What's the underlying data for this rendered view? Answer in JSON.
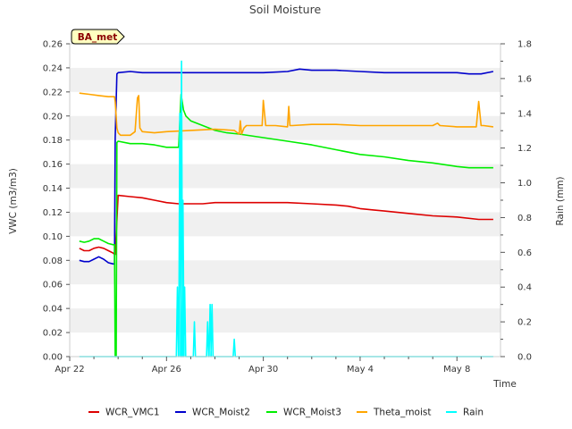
{
  "chart_data": {
    "type": "line",
    "title": "Soil Moisture",
    "xlabel": "Time",
    "ylabel": "VWC (m3/m3)",
    "y2label": "Rain (mm)",
    "badge": "BA_met",
    "ylim": [
      0,
      0.26
    ],
    "y2lim": [
      0,
      1.8
    ],
    "xlim": [
      0,
      17.8
    ],
    "grid": "horizontal bands",
    "legend_position": "bottom",
    "y_ticks": [
      "0.00",
      "0.02",
      "0.04",
      "0.06",
      "0.08",
      "0.10",
      "0.12",
      "0.14",
      "0.16",
      "0.18",
      "0.20",
      "0.22",
      "0.24",
      "0.26"
    ],
    "y2_ticks": [
      "0.0",
      "0.2",
      "0.4",
      "0.6",
      "0.8",
      "1.0",
      "1.2",
      "1.4",
      "1.6",
      "1.8"
    ],
    "x_ticks": [
      {
        "day": 0,
        "label": "Apr 22"
      },
      {
        "day": 4,
        "label": "Apr 26"
      },
      {
        "day": 8,
        "label": "Apr 30"
      },
      {
        "day": 12,
        "label": "May 4"
      },
      {
        "day": 16,
        "label": "May 8"
      }
    ],
    "series": [
      {
        "name": "WCR_VMC1",
        "color": "#dd0000",
        "axis": "left",
        "x": [
          0.4,
          0.6,
          0.8,
          1.0,
          1.2,
          1.4,
          1.6,
          1.8,
          1.85,
          1.88,
          2.0,
          2.5,
          3.0,
          3.5,
          4.0,
          4.5,
          5.0,
          5.5,
          6.0,
          7.0,
          8.0,
          9.0,
          10.0,
          11.0,
          11.5,
          12.0,
          12.5,
          13.0,
          14.0,
          15.0,
          16.0,
          16.9,
          17.5
        ],
        "y": [
          0.09,
          0.088,
          0.088,
          0.09,
          0.091,
          0.09,
          0.088,
          0.086,
          0.085,
          0.085,
          0.134,
          0.133,
          0.132,
          0.13,
          0.128,
          0.127,
          0.127,
          0.127,
          0.128,
          0.128,
          0.128,
          0.128,
          0.127,
          0.126,
          0.125,
          0.123,
          0.122,
          0.121,
          0.119,
          0.117,
          0.116,
          0.114,
          0.114
        ]
      },
      {
        "name": "WCR_Moist2",
        "color": "#0000cc",
        "axis": "left",
        "x": [
          0.4,
          0.6,
          0.8,
          1.0,
          1.2,
          1.4,
          1.6,
          1.8,
          1.85,
          1.88,
          1.95,
          2.0,
          2.5,
          3.0,
          4.0,
          5.0,
          6.0,
          7.0,
          8.0,
          9.0,
          9.5,
          10.0,
          11.0,
          12.0,
          13.0,
          14.0,
          15.0,
          16.0,
          16.5,
          17.0,
          17.5
        ],
        "y": [
          0.08,
          0.079,
          0.079,
          0.081,
          0.083,
          0.081,
          0.078,
          0.077,
          0.077,
          0.182,
          0.235,
          0.236,
          0.237,
          0.236,
          0.236,
          0.236,
          0.236,
          0.236,
          0.236,
          0.237,
          0.239,
          0.238,
          0.238,
          0.237,
          0.236,
          0.236,
          0.236,
          0.236,
          0.235,
          0.235,
          0.237
        ]
      },
      {
        "name": "WCR_Moist3",
        "color": "#00ee00",
        "axis": "left",
        "x": [
          0.4,
          0.6,
          0.8,
          1.0,
          1.2,
          1.4,
          1.6,
          1.8,
          1.85,
          1.88,
          1.92,
          1.95,
          2.0,
          2.5,
          3.0,
          3.5,
          4.0,
          4.3,
          4.5,
          4.6,
          4.7,
          4.8,
          5.0,
          5.5,
          6.0,
          6.5,
          7.0,
          8.0,
          9.0,
          10.0,
          11.0,
          12.0,
          13.0,
          14.0,
          15.0,
          16.0,
          16.5,
          17.0,
          17.5
        ],
        "y": [
          0.096,
          0.095,
          0.096,
          0.098,
          0.098,
          0.096,
          0.094,
          0.093,
          0.093,
          0.0,
          0.0,
          0.178,
          0.179,
          0.177,
          0.177,
          0.176,
          0.174,
          0.174,
          0.174,
          0.218,
          0.205,
          0.2,
          0.196,
          0.192,
          0.188,
          0.186,
          0.185,
          0.182,
          0.179,
          0.176,
          0.172,
          0.168,
          0.166,
          0.163,
          0.161,
          0.158,
          0.157,
          0.157,
          0.157
        ]
      },
      {
        "name": "Theta_moist",
        "color": "#ffa500",
        "axis": "left",
        "x": [
          0.4,
          0.8,
          1.2,
          1.6,
          1.85,
          1.88,
          1.95,
          2.0,
          2.1,
          2.3,
          2.5,
          2.7,
          2.8,
          2.85,
          2.9,
          3.0,
          3.5,
          4.0,
          5.0,
          6.0,
          6.8,
          7.0,
          7.05,
          7.1,
          7.2,
          7.3,
          7.95,
          8.0,
          8.1,
          8.2,
          8.5,
          9.0,
          9.05,
          9.1,
          9.2,
          10.0,
          11.0,
          12.0,
          13.0,
          14.0,
          15.0,
          15.2,
          15.3,
          16.0,
          16.5,
          16.8,
          16.9,
          17.0,
          17.1,
          17.5
        ],
        "y": [
          0.219,
          0.218,
          0.217,
          0.216,
          0.216,
          0.212,
          0.19,
          0.186,
          0.184,
          0.184,
          0.184,
          0.187,
          0.215,
          0.217,
          0.19,
          0.187,
          0.186,
          0.187,
          0.188,
          0.189,
          0.188,
          0.185,
          0.196,
          0.185,
          0.19,
          0.192,
          0.192,
          0.213,
          0.192,
          0.192,
          0.192,
          0.191,
          0.208,
          0.192,
          0.192,
          0.193,
          0.193,
          0.192,
          0.192,
          0.192,
          0.192,
          0.194,
          0.192,
          0.191,
          0.191,
          0.191,
          0.212,
          0.192,
          0.192,
          0.191
        ]
      }
    ],
    "rain": {
      "name": "Rain",
      "color": "#00ffff",
      "axis": "right",
      "events": [
        {
          "day": 4.45,
          "mm": 0.4
        },
        {
          "day": 4.55,
          "mm": 1.4
        },
        {
          "day": 4.62,
          "mm": 1.7
        },
        {
          "day": 4.68,
          "mm": 0.9
        },
        {
          "day": 4.75,
          "mm": 0.4
        },
        {
          "day": 5.15,
          "mm": 0.2
        },
        {
          "day": 5.7,
          "mm": 0.2
        },
        {
          "day": 5.8,
          "mm": 0.3
        },
        {
          "day": 5.88,
          "mm": 0.3
        },
        {
          "day": 6.8,
          "mm": 0.1
        }
      ]
    }
  }
}
